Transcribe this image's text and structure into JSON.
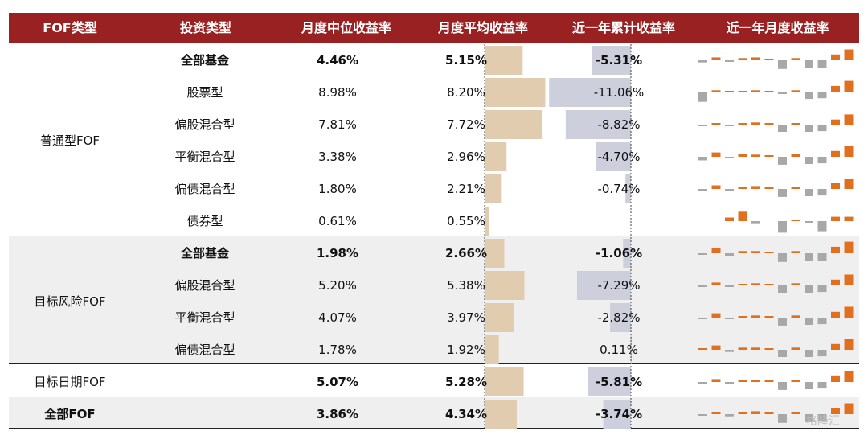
{
  "header": {
    "col_fof_type": "FOF类型",
    "col_invest_type": "投资类型",
    "col_median": "月度中位收益率",
    "col_mean": "月度平均收益率",
    "col_cum": "近一年累计收益率",
    "col_monthly": "近一年月度收益率"
  },
  "groups": [
    {
      "label": "普通型FOF",
      "start": 0,
      "count": 6
    },
    {
      "label": "目标风险FOF",
      "start": 6,
      "count": 4
    },
    {
      "label": "目标日期FOF",
      "start": 10,
      "count": 1
    },
    {
      "label": "全部FOF",
      "start": 11,
      "count": 1
    }
  ],
  "rows": [
    {
      "invest_type": "全部基金",
      "median": "4.46%",
      "mean": "5.15%",
      "cum": "-5.31%",
      "bold": true
    },
    {
      "invest_type": "股票型",
      "median": "8.98%",
      "mean": "8.20%",
      "cum": "-11.06%",
      "bold": false
    },
    {
      "invest_type": "偏股混合型",
      "median": "7.81%",
      "mean": "7.72%",
      "cum": "-8.82%",
      "bold": false
    },
    {
      "invest_type": "平衡混合型",
      "median": "3.38%",
      "mean": "2.96%",
      "cum": "-4.70%",
      "bold": false
    },
    {
      "invest_type": "偏债混合型",
      "median": "1.80%",
      "mean": "2.21%",
      "cum": "-0.74%",
      "bold": false
    },
    {
      "invest_type": "债券型",
      "median": "0.61%",
      "mean": "0.55%",
      "cum": "",
      "bold": false
    },
    {
      "invest_type": "全部基金",
      "median": "1.98%",
      "mean": "2.66%",
      "cum": "-1.06%",
      "bold": true
    },
    {
      "invest_type": "偏股混合型",
      "median": "5.20%",
      "mean": "5.38%",
      "cum": "-7.29%",
      "bold": false
    },
    {
      "invest_type": "平衡混合型",
      "median": "4.07%",
      "mean": "3.97%",
      "cum": "-2.82%",
      "bold": false
    },
    {
      "invest_type": "偏债混合型",
      "median": "1.78%",
      "mean": "1.92%",
      "cum": "0.11%",
      "bold": false
    },
    {
      "invest_type": "",
      "median": "5.07%",
      "mean": "5.28%",
      "cum": "-5.81%",
      "bold": true
    },
    {
      "invest_type": "",
      "median": "3.86%",
      "mean": "4.34%",
      "cum": "-3.74%",
      "bold": true
    }
  ],
  "chart_data": {
    "type": "table",
    "mean_values": [
      5.15,
      8.2,
      7.72,
      2.96,
      2.21,
      0.55,
      2.66,
      5.38,
      3.97,
      1.92,
      5.28,
      4.34
    ],
    "cum_values": [
      -5.31,
      -11.06,
      -8.82,
      -4.7,
      -0.74,
      null,
      -1.06,
      -7.29,
      -2.82,
      0.11,
      -5.81,
      -3.74
    ],
    "monthly_sparklines": [
      [
        -0.3,
        0.4,
        -0.2,
        0.3,
        0.4,
        0.1,
        -1.2,
        0.3,
        -1.1,
        -1.0,
        0.8,
        1.5
      ],
      [
        -1.3,
        0.3,
        0.1,
        0.2,
        0.3,
        0.1,
        -0.2,
        0.3,
        -0.9,
        -0.8,
        0.9,
        1.6
      ],
      [
        -0.1,
        0.2,
        -0.1,
        0.2,
        0.3,
        0.1,
        -1.0,
        0.2,
        -1.0,
        -0.9,
        0.7,
        1.4
      ],
      [
        -0.5,
        0.6,
        -0.2,
        0.4,
        0.3,
        0.1,
        -1.1,
        0.4,
        -1.0,
        -0.9,
        0.8,
        1.5
      ],
      [
        -0.1,
        0.5,
        -0.3,
        0.3,
        0.4,
        0.1,
        -1.1,
        0.3,
        -1.0,
        -0.9,
        0.8,
        1.4
      ],
      [
        null,
        null,
        0.5,
        1.3,
        -0.3,
        null,
        -1.6,
        0.1,
        -0.2,
        -1.4,
        0.6,
        0.6
      ],
      [
        -0.1,
        0.7,
        -0.4,
        0.3,
        0.3,
        0.1,
        -1.2,
        0.3,
        -1.1,
        -1.0,
        0.9,
        1.6
      ],
      [
        -0.2,
        0.4,
        -0.2,
        0.2,
        0.3,
        0.1,
        -1.0,
        0.3,
        -1.0,
        -0.9,
        0.8,
        1.5
      ],
      [
        -0.1,
        0.6,
        -0.2,
        0.2,
        0.3,
        0.1,
        -1.1,
        0.3,
        -1.0,
        -0.9,
        0.8,
        1.5
      ],
      [
        0.1,
        0.6,
        -0.3,
        0.3,
        0.3,
        0.1,
        -1.0,
        0.3,
        -1.0,
        -0.9,
        0.8,
        1.5
      ],
      [
        -0.2,
        0.4,
        -0.1,
        0.2,
        0.3,
        0.1,
        -1.1,
        0.3,
        -1.0,
        -0.9,
        0.8,
        1.5
      ],
      [
        -0.1,
        0.3,
        -0.3,
        0.3,
        0.4,
        0.1,
        -1.2,
        0.3,
        -1.1,
        -1.0,
        0.8,
        1.5
      ]
    ],
    "colors": {
      "mean_bar": "#e2ccb0",
      "cum_bar": "#cdd0dc",
      "pos": "#e07020",
      "neg": "#a8a8a8",
      "header": "#9a2121"
    }
  },
  "watermark": "格隆汇"
}
